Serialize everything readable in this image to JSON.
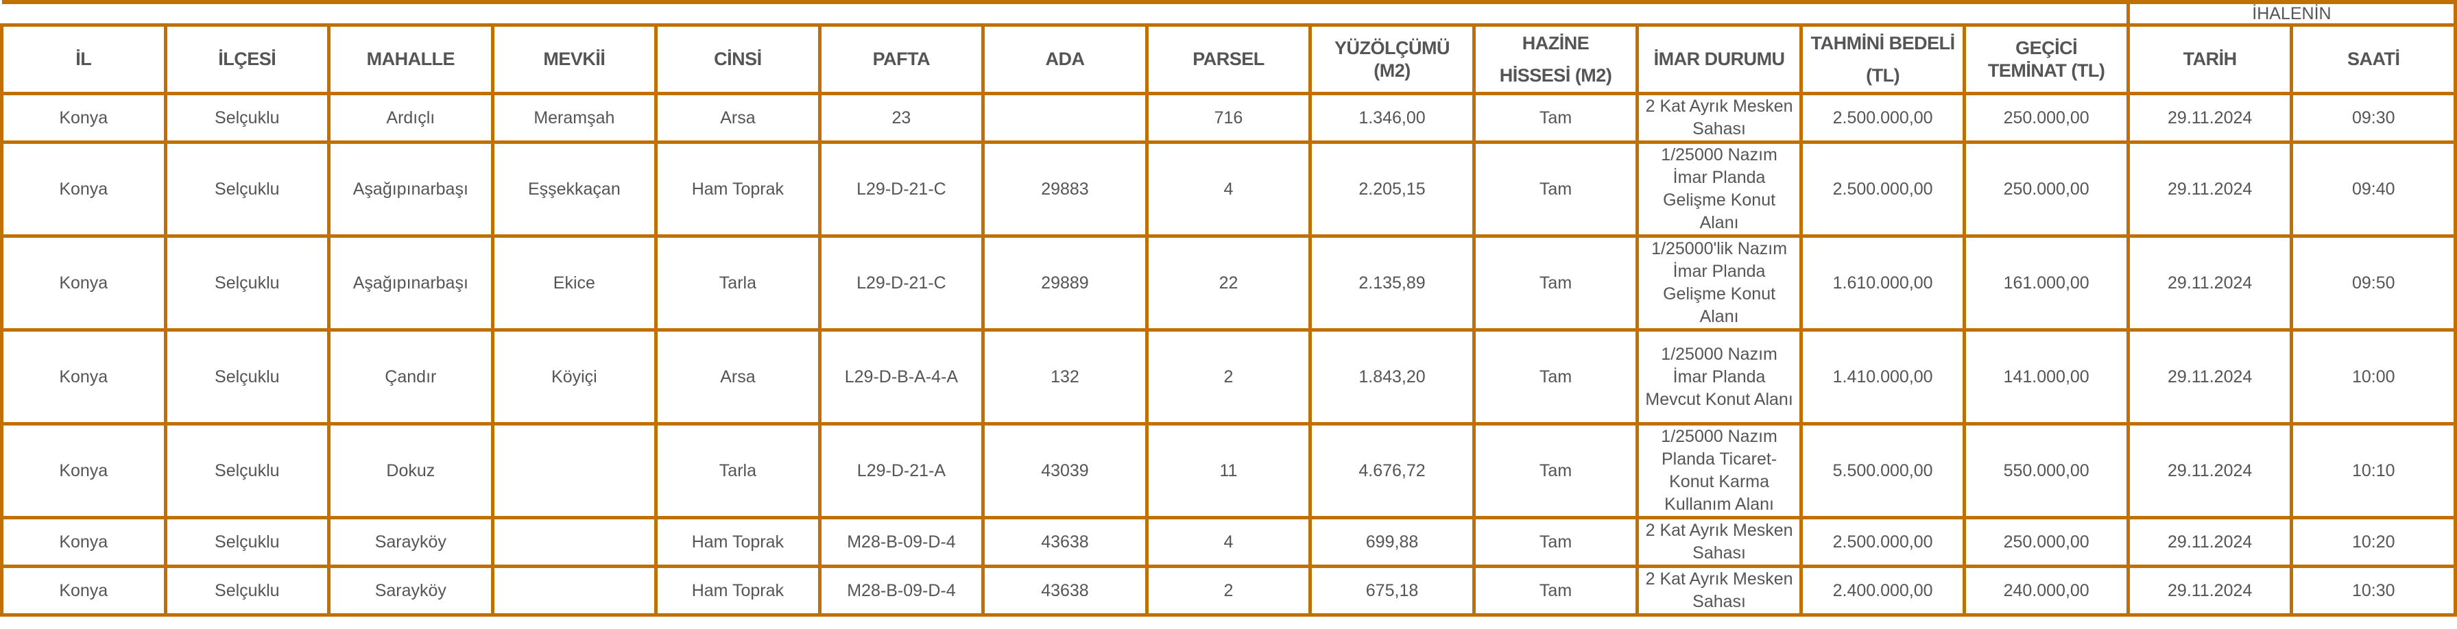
{
  "group_header": "İHALENİN",
  "headers": {
    "il": "İL",
    "ilcesi": "İLÇESİ",
    "mahalle": "MAHALLE",
    "mevkii": "MEVKİİ",
    "cinsi": "CİNSİ",
    "pafta": "PAFTA",
    "ada": "ADA",
    "parsel": "PARSEL",
    "yuzolcumu_1": "YÜZÖLÇÜMÜ",
    "yuzolcumu_2": "(M2)",
    "hazine_1": "HAZİNE",
    "hazine_2": "HİSSESİ (M2)",
    "imar": "İMAR DURUMU",
    "tahmini_1": "TAHMİNİ BEDELİ",
    "tahmini_2": "(TL)",
    "gecici_1": "GEÇİCİ",
    "gecici_2": "TEMİNAT (TL)",
    "tarih": "TARİH",
    "saati": "SAATİ"
  },
  "rows": [
    {
      "il": "Konya",
      "ilce": "Selçuklu",
      "mahalle": "Ardıçlı",
      "mevkii": "Meramşah",
      "cinsi": "Arsa",
      "pafta": "23",
      "ada": "",
      "parsel": "716",
      "yuzolcumu": "1.346,00",
      "hazine": "Tam",
      "imar": "2 Kat Ayrık Mesken Sahası",
      "tahmini": "2.500.000,00",
      "teminat": "250.000,00",
      "tarih": "29.11.2024",
      "saat": "09:30"
    },
    {
      "il": "Konya",
      "ilce": "Selçuklu",
      "mahalle": "Aşağıpınarbaşı",
      "mevkii": "Eşşekkaçan",
      "cinsi": "Ham Toprak",
      "pafta": "L29-D-21-C",
      "ada": "29883",
      "parsel": "4",
      "yuzolcumu": "2.205,15",
      "hazine": "Tam",
      "imar": "1/25000 Nazım İmar Planda Gelişme Konut Alanı",
      "tahmini": "2.500.000,00",
      "teminat": "250.000,00",
      "tarih": "29.11.2024",
      "saat": "09:40"
    },
    {
      "il": "Konya",
      "ilce": "Selçuklu",
      "mahalle": "Aşağıpınarbaşı",
      "mevkii": "Ekice",
      "cinsi": "Tarla",
      "pafta": "L29-D-21-C",
      "ada": "29889",
      "parsel": "22",
      "yuzolcumu": "2.135,89",
      "hazine": "Tam",
      "imar": "1/25000'lik Nazım İmar Planda Gelişme Konut Alanı",
      "tahmini": "1.610.000,00",
      "teminat": "161.000,00",
      "tarih": "29.11.2024",
      "saat": "09:50"
    },
    {
      "il": "Konya",
      "ilce": "Selçuklu",
      "mahalle": "Çandır",
      "mevkii": "Köyiçi",
      "cinsi": "Arsa",
      "pafta": "L29-D-B-A-4-A",
      "ada": "132",
      "parsel": "2",
      "yuzolcumu": "1.843,20",
      "hazine": "Tam",
      "imar": "1/25000 Nazım İmar Planda Mevcut Konut Alanı",
      "tahmini": "1.410.000,00",
      "teminat": "141.000,00",
      "tarih": "29.11.2024",
      "saat": "10:00"
    },
    {
      "il": "Konya",
      "ilce": "Selçuklu",
      "mahalle": "Dokuz",
      "mevkii": "",
      "cinsi": "Tarla",
      "pafta": "L29-D-21-A",
      "ada": "43039",
      "parsel": "11",
      "yuzolcumu": "4.676,72",
      "hazine": "Tam",
      "imar": "1/25000 Nazım Planda Ticaret-Konut Karma Kullanım Alanı",
      "tahmini": "5.500.000,00",
      "teminat": "550.000,00",
      "tarih": "29.11.2024",
      "saat": "10:10"
    },
    {
      "il": "Konya",
      "ilce": "Selçuklu",
      "mahalle": "Sarayköy",
      "mevkii": "",
      "cinsi": "Ham Toprak",
      "pafta": "M28-B-09-D-4",
      "ada": "43638",
      "parsel": "4",
      "yuzolcumu": "699,88",
      "hazine": "Tam",
      "imar": "2 Kat Ayrık Mesken Sahası",
      "tahmini": "2.500.000,00",
      "teminat": "250.000,00",
      "tarih": "29.11.2024",
      "saat": "10:20"
    },
    {
      "il": "Konya",
      "ilce": "Selçuklu",
      "mahalle": "Sarayköy",
      "mevkii": "",
      "cinsi": "Ham Toprak",
      "pafta": "M28-B-09-D-4",
      "ada": "43638",
      "parsel": "2",
      "yuzolcumu": "675,18",
      "hazine": "Tam",
      "imar": "2 Kat Ayrık Mesken Sahası",
      "tahmini": "2.400.000,00",
      "teminat": "240.000,00",
      "tarih": "29.11.2024",
      "saat": "10:30"
    }
  ],
  "colors": {
    "border": "#c07000",
    "text": "#555555"
  }
}
